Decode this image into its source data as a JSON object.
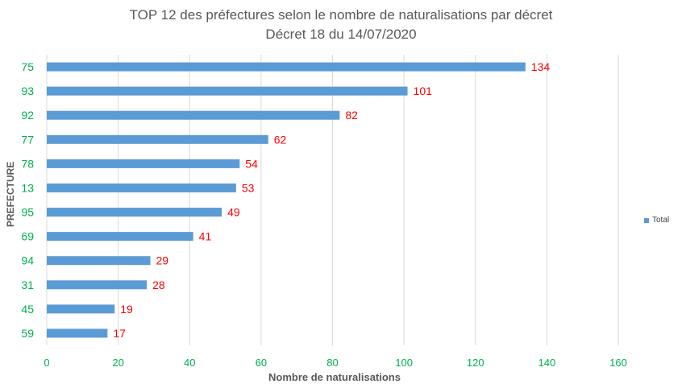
{
  "chart_data": {
    "type": "bar",
    "orientation": "horizontal",
    "title": "TOP 12 des préfectures selon le nombre de naturalisations par décret",
    "subtitle": "Décret 18 du 14/07/2020",
    "xlabel": "Nombre de naturalisations",
    "ylabel": "PREFECTURE",
    "categories": [
      "75",
      "93",
      "92",
      "77",
      "78",
      "13",
      "95",
      "69",
      "94",
      "31",
      "45",
      "59"
    ],
    "series": [
      {
        "name": "Total",
        "values": [
          134,
          101,
          82,
          62,
          54,
          53,
          49,
          41,
          29,
          28,
          19,
          17
        ]
      }
    ],
    "xlim": [
      0,
      160
    ],
    "xticks": [
      "0",
      "20",
      "40",
      "60",
      "80",
      "100",
      "120",
      "140",
      "160"
    ],
    "grid": true,
    "legend": "right",
    "colors": {
      "bar": "#5b9bd5",
      "category_label": "#00b050",
      "data_label": "#ff0000",
      "tick": "#00b050"
    }
  }
}
